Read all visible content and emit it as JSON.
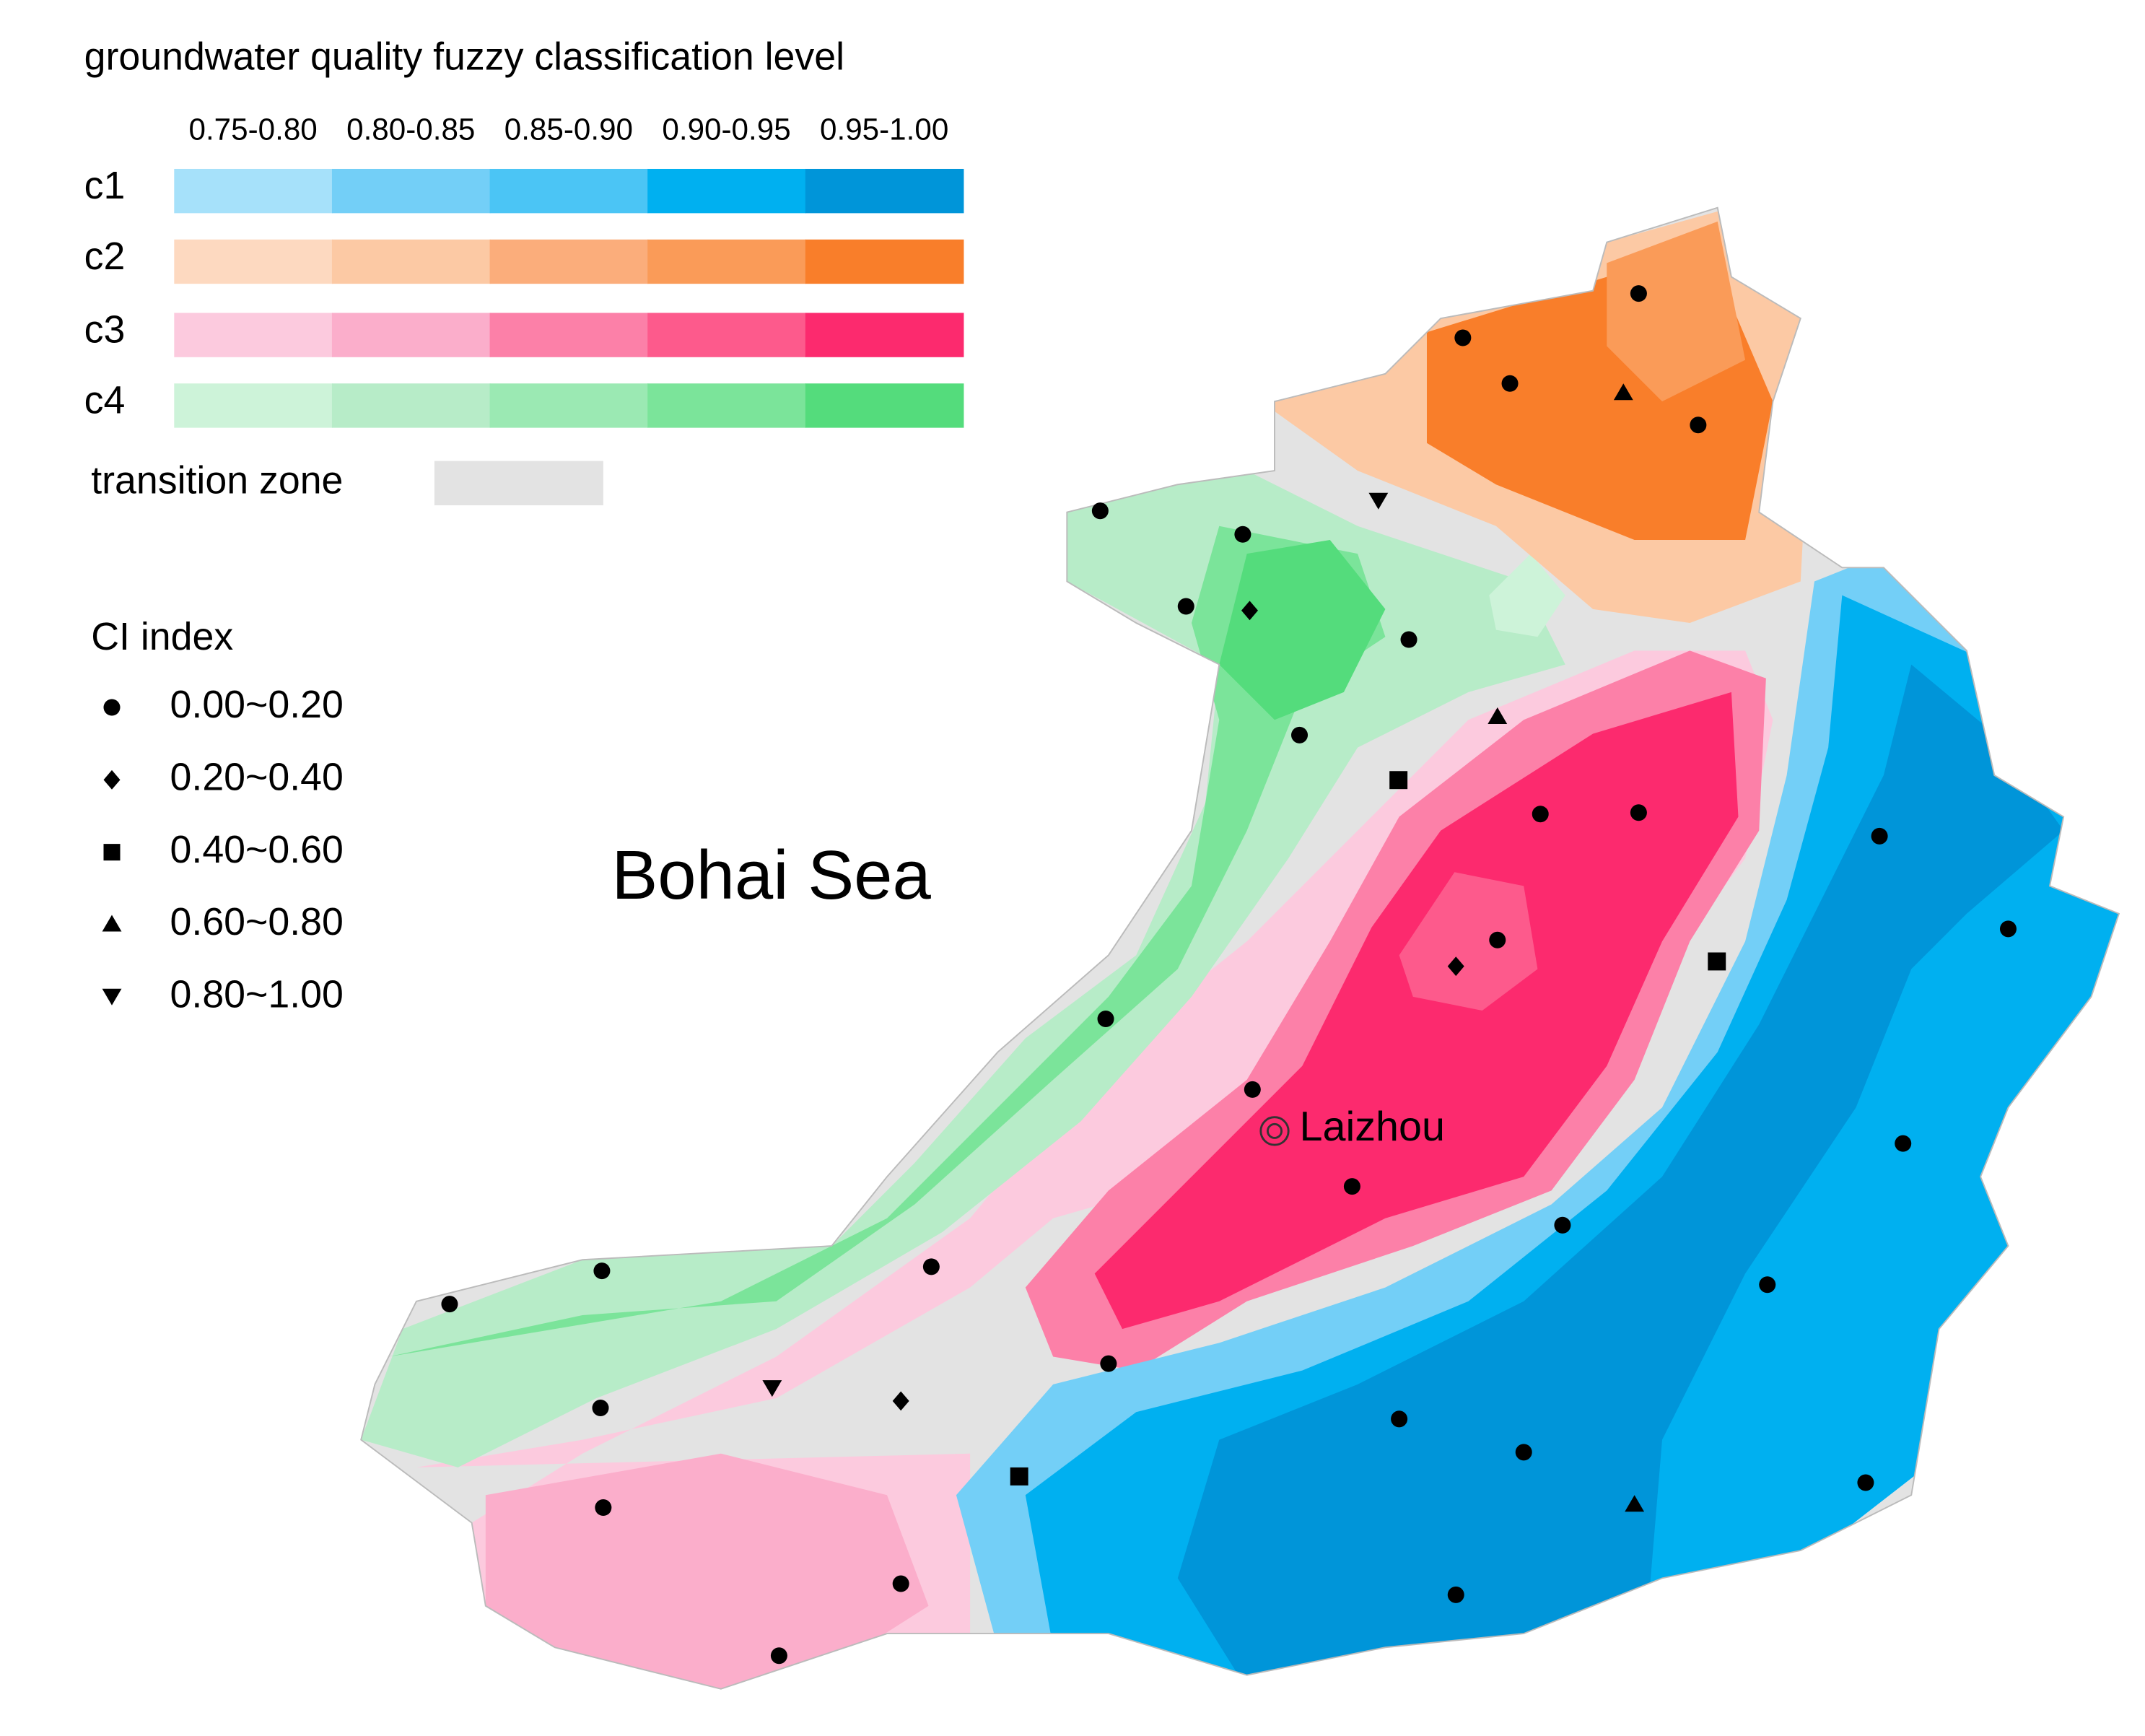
{
  "legend": {
    "title": "groundwater quality fuzzy  classification level",
    "ranges": [
      "0.75-0.80",
      "0.80-0.85",
      "0.85-0.90",
      "0.90-0.95",
      "0.95-1.00"
    ],
    "classes": [
      {
        "label": "c1",
        "colors": [
          "#a6e1fa",
          "#73cff7",
          "#4bc5f5",
          "#00b0f0",
          "#0095d9"
        ]
      },
      {
        "label": "c2",
        "colors": [
          "#fdd9c0",
          "#fcc9a4",
          "#fbad7b",
          "#fa9b58",
          "#f97e2a"
        ]
      },
      {
        "label": "c3",
        "colors": [
          "#fccade",
          "#fbaecb",
          "#fc80a8",
          "#fd5a8c",
          "#fc2a6e"
        ]
      },
      {
        "label": "c4",
        "colors": [
          "#cdf3d9",
          "#b7ecc8",
          "#9be9b3",
          "#7be49a",
          "#54dc7c"
        ]
      }
    ],
    "transition_zone": {
      "label": "transition zone",
      "color": "#e3e3e3"
    }
  },
  "ci_legend": {
    "title": "CI index",
    "items": [
      {
        "symbol": "circle",
        "label": "0.00~0.20"
      },
      {
        "symbol": "diamond",
        "label": "0.20~0.40"
      },
      {
        "symbol": "square",
        "label": "0.40~0.60"
      },
      {
        "symbol": "triangle-up",
        "label": "0.60~0.80"
      },
      {
        "symbol": "triangle-down",
        "label": "0.80~1.00"
      }
    ]
  },
  "map_labels": {
    "sea": "Bohai  Sea",
    "city": "Laizhou"
  }
}
